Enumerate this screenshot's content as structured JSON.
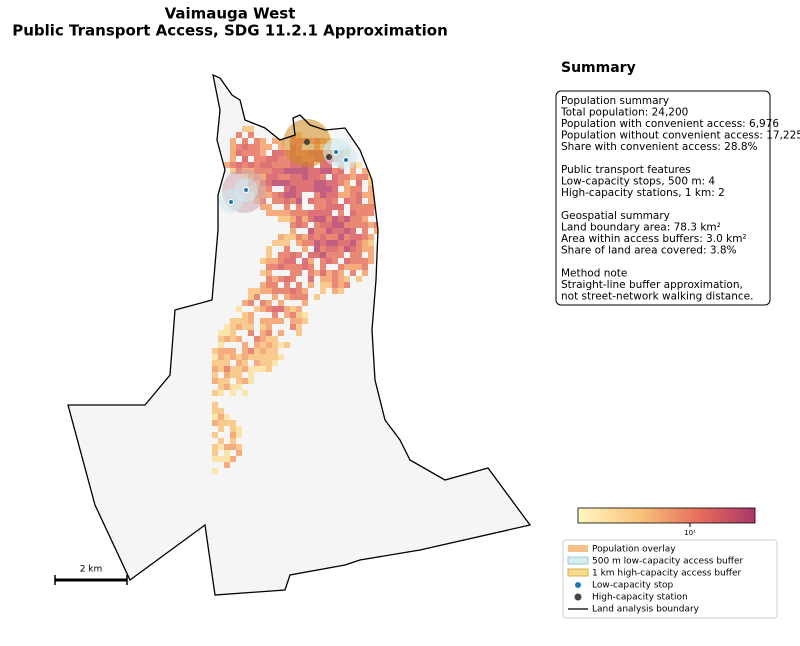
{
  "title": "Vaimauga West",
  "subtitle": "Public Transport Access, SDG 11.2.1 Approximation",
  "summary": {
    "heading": "Summary",
    "sections": [
      {
        "heading": "Population summary",
        "lines": [
          "Total population: 24,200",
          "Population with convenient access: 6,976",
          "Population without convenient access: 17,225",
          "Share with convenient access: 28.8%"
        ]
      },
      {
        "heading": "Public transport features",
        "lines": [
          "Low-capacity stops, 500 m: 4",
          "High-capacity stations, 1 km: 2"
        ]
      },
      {
        "heading": "Geospatial summary",
        "lines": [
          "Land boundary area: 78.3 km²",
          "Area within access buffers: 3.0 km²",
          "Share of land area covered: 3.8%"
        ]
      },
      {
        "heading": "Method note",
        "lines": [
          "Straight-line buffer approximation,",
          "not street-network walking distance."
        ]
      }
    ]
  },
  "colorbar": {
    "tick_label": "10¹"
  },
  "legend": [
    "Population overlay",
    "500 m low-capacity access buffer",
    "1 km high-capacity access buffer",
    "Low-capacity stop",
    "High-capacity station",
    "Land analysis boundary"
  ],
  "scale_bar": "2 km"
}
